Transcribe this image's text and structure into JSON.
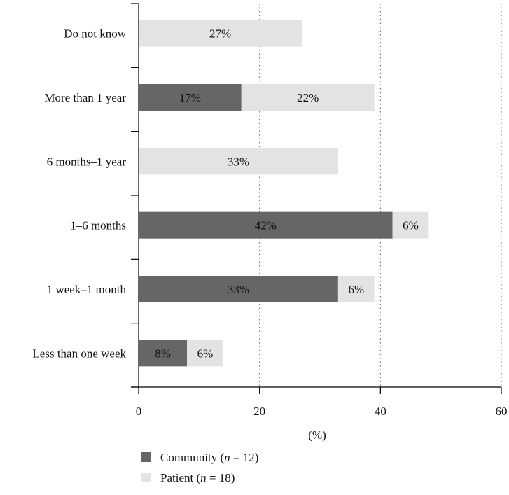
{
  "chart_data": {
    "type": "bar",
    "orientation": "horizontal",
    "stacked": true,
    "categories": [
      "Do not know",
      "More than 1 year",
      "6 months–1 year",
      "1–6 months",
      "1 week–1 month",
      "Less than one week"
    ],
    "series": [
      {
        "name": "Community",
        "n_label": "n",
        "n_value": "= 12)",
        "color": "#666666",
        "values": [
          0,
          17,
          0,
          42,
          33,
          8
        ],
        "labels": [
          "",
          "17%",
          "",
          "42%",
          "33%",
          "8%"
        ]
      },
      {
        "name": "Patient",
        "n_label": "n",
        "n_value": "= 18)",
        "color": "#e3e3e3",
        "values": [
          27,
          22,
          33,
          6,
          6,
          6
        ],
        "labels": [
          "27%",
          "22%",
          "33%",
          "6%",
          "6%",
          "6%"
        ]
      }
    ],
    "xticks": [
      0,
      20,
      40,
      60
    ],
    "xtick_labels": [
      "0",
      "20",
      "40",
      "60"
    ],
    "xlim": [
      0,
      60
    ],
    "xlabel": "(%)",
    "grid": "vertical-dotted",
    "legend_placement": "bottom"
  }
}
